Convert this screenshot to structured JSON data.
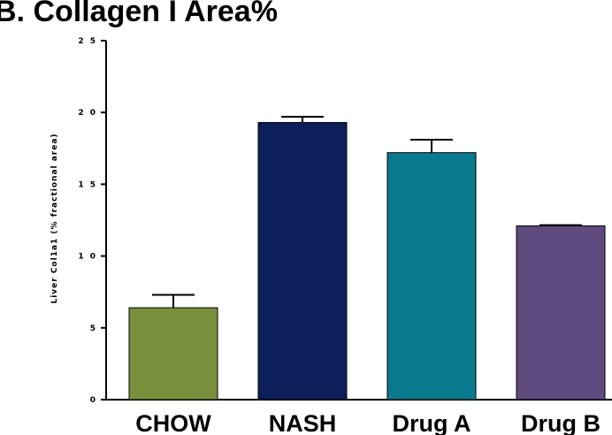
{
  "chart_data": {
    "type": "bar",
    "title": "B. Collagen I Area%",
    "ylabel": "Liver Col1a1 (% fractional area)",
    "xlabel": "",
    "ylim": [
      0,
      25
    ],
    "yticks": [
      "0",
      "5",
      "1 0",
      "1 5",
      "2 0",
      "2 5"
    ],
    "categories": [
      "CHOW",
      "NASH",
      "Drug A",
      "Drug B"
    ],
    "values": [
      6.4,
      19.3,
      17.2,
      12.1
    ],
    "errors": [
      0.9,
      0.4,
      0.9,
      0.05
    ],
    "colors": [
      "#7a8f3b",
      "#0c1f5a",
      "#0a7a8e",
      "#5f4a7e"
    ],
    "grid": false,
    "legend": "none"
  }
}
